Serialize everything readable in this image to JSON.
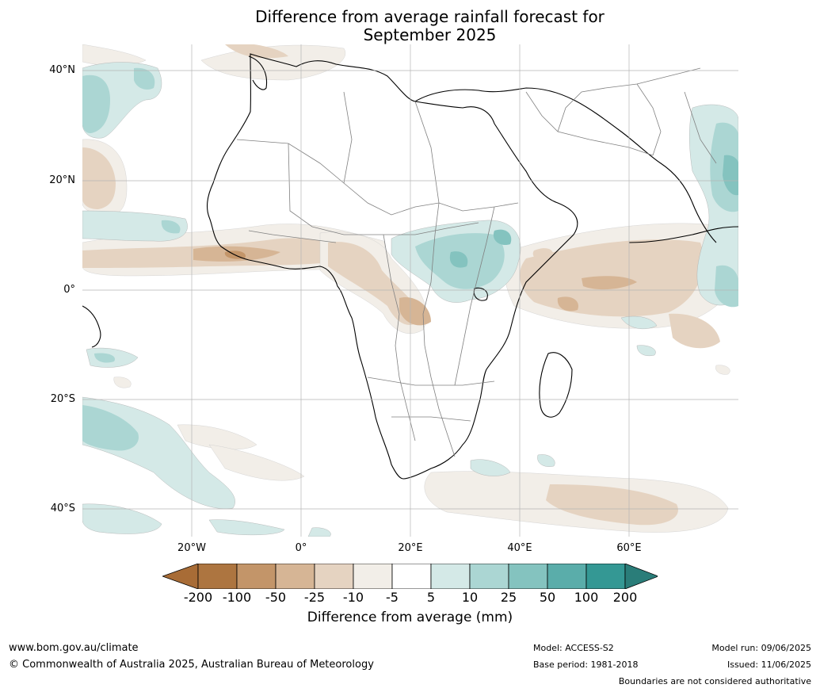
{
  "title_line1": "Difference from average rainfall forecast for",
  "title_line2": "September 2025",
  "lat_labels": [
    "40°N",
    "20°N",
    "0°",
    "20°S",
    "40°S"
  ],
  "lon_labels": [
    "20°W",
    "0°",
    "20°E",
    "40°E",
    "60°E"
  ],
  "legend": {
    "ticks": [
      "-200",
      "-100",
      "-50",
      "-25",
      "-10",
      "-5",
      "5",
      "10",
      "25",
      "50",
      "100",
      "200"
    ],
    "label": "Difference from average (mm)",
    "colors": [
      "#a86c36",
      "#ad7540",
      "#c39569",
      "#d6b595",
      "#e5d3c1",
      "#f2eee8",
      "#ffffff",
      "#d4e9e7",
      "#abd6d3",
      "#84c3bf",
      "#5aadaa",
      "#349894",
      "#2a7d79"
    ]
  },
  "footer": {
    "url": "www.bom.gov.au/climate",
    "copyright": "© Commonwealth of Australia 2025, Australian Bureau of Meteorology",
    "model": "Model: ACCESS-S2",
    "base_period": "Base period: 1981-2018",
    "model_run": "Model run: 09/06/2025",
    "issued": "Issued: 11/06/2025",
    "boundaries_note": "Boundaries are not considered authoritative"
  }
}
